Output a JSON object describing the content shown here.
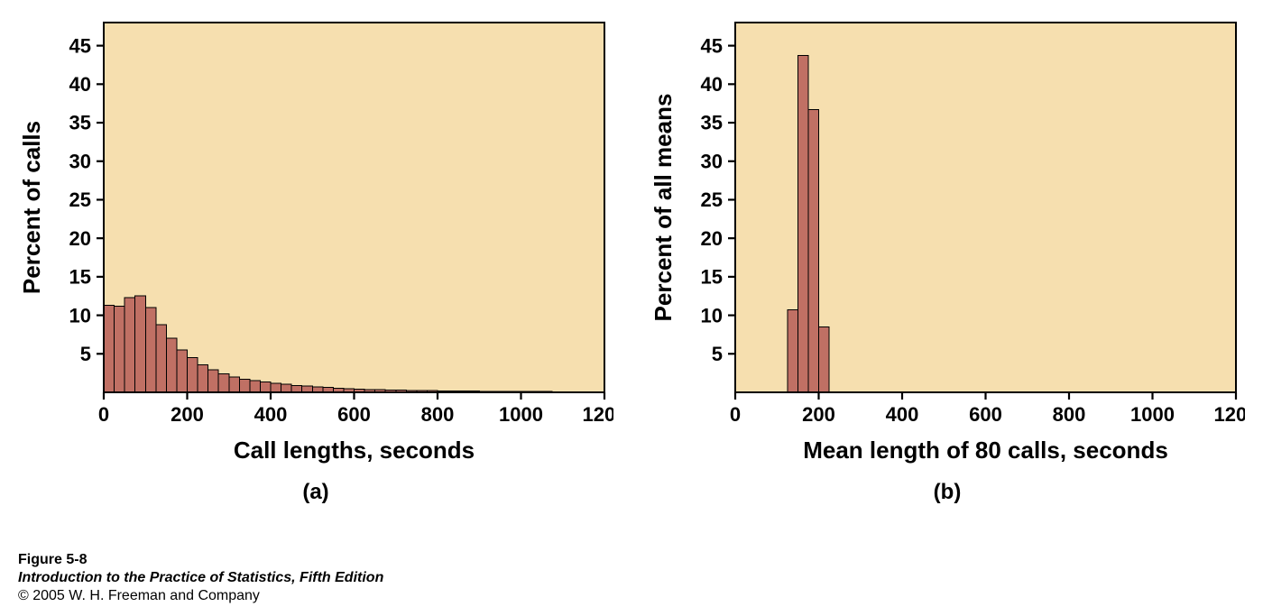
{
  "chart_a": {
    "type": "histogram",
    "plot_bg": "#f6dfaf",
    "border_color": "#000000",
    "border_width": 2.2,
    "bar_fill": "#c07064",
    "bar_stroke": "#000000",
    "bar_stroke_width": 1,
    "xlim": [
      0,
      1200
    ],
    "ylim": [
      0,
      48
    ],
    "xtick_step": 200,
    "ytick_step": 5,
    "x_bin_width": 25,
    "xlabel": "Call lengths, seconds",
    "ylabel": "Percent of calls",
    "label_fontsize": 26,
    "label_fontweight": 700,
    "tick_fontsize": 22,
    "tick_fontweight": 700,
    "sub_label": "(a)",
    "bars": [
      {
        "x": 0,
        "h": 11.3
      },
      {
        "x": 25,
        "h": 11.2
      },
      {
        "x": 50,
        "h": 12.3
      },
      {
        "x": 75,
        "h": 12.5
      },
      {
        "x": 100,
        "h": 11.0
      },
      {
        "x": 125,
        "h": 8.8
      },
      {
        "x": 150,
        "h": 7.0
      },
      {
        "x": 175,
        "h": 5.5
      },
      {
        "x": 200,
        "h": 4.5
      },
      {
        "x": 225,
        "h": 3.6
      },
      {
        "x": 250,
        "h": 2.9
      },
      {
        "x": 275,
        "h": 2.4
      },
      {
        "x": 300,
        "h": 2.0
      },
      {
        "x": 325,
        "h": 1.7
      },
      {
        "x": 350,
        "h": 1.5
      },
      {
        "x": 375,
        "h": 1.35
      },
      {
        "x": 400,
        "h": 1.2
      },
      {
        "x": 425,
        "h": 1.05
      },
      {
        "x": 450,
        "h": 0.9
      },
      {
        "x": 475,
        "h": 0.8
      },
      {
        "x": 500,
        "h": 0.7
      },
      {
        "x": 525,
        "h": 0.62
      },
      {
        "x": 550,
        "h": 0.55
      },
      {
        "x": 575,
        "h": 0.48
      },
      {
        "x": 600,
        "h": 0.42
      },
      {
        "x": 625,
        "h": 0.38
      },
      {
        "x": 650,
        "h": 0.34
      },
      {
        "x": 675,
        "h": 0.3
      },
      {
        "x": 700,
        "h": 0.28
      },
      {
        "x": 725,
        "h": 0.25
      },
      {
        "x": 750,
        "h": 0.23
      },
      {
        "x": 775,
        "h": 0.21
      },
      {
        "x": 800,
        "h": 0.19
      },
      {
        "x": 825,
        "h": 0.18
      },
      {
        "x": 850,
        "h": 0.16
      },
      {
        "x": 875,
        "h": 0.15
      },
      {
        "x": 900,
        "h": 0.14
      },
      {
        "x": 925,
        "h": 0.13
      },
      {
        "x": 950,
        "h": 0.12
      },
      {
        "x": 975,
        "h": 0.11
      },
      {
        "x": 1000,
        "h": 0.1
      },
      {
        "x": 1025,
        "h": 0.1
      },
      {
        "x": 1050,
        "h": 0.09
      },
      {
        "x": 1075,
        "h": 0.08
      },
      {
        "x": 1100,
        "h": 0.08
      },
      {
        "x": 1125,
        "h": 0.07
      },
      {
        "x": 1150,
        "h": 0.07
      },
      {
        "x": 1175,
        "h": 0.06
      }
    ]
  },
  "chart_b": {
    "type": "histogram",
    "plot_bg": "#f6dfaf",
    "border_color": "#000000",
    "border_width": 2.2,
    "bar_fill": "#c07064",
    "bar_stroke": "#000000",
    "bar_stroke_width": 1,
    "xlim": [
      0,
      1200
    ],
    "ylim": [
      0,
      48
    ],
    "xtick_step": 200,
    "ytick_step": 5,
    "x_bin_width": 25,
    "xlabel": "Mean length of 80 calls, seconds",
    "ylabel": "Percent of all means",
    "label_fontsize": 26,
    "label_fontweight": 700,
    "tick_fontsize": 22,
    "tick_fontweight": 700,
    "sub_label": "(b)",
    "bars": [
      {
        "x": 125,
        "h": 10.7
      },
      {
        "x": 150,
        "h": 43.7
      },
      {
        "x": 175,
        "h": 36.7
      },
      {
        "x": 200,
        "h": 8.5
      }
    ]
  },
  "caption": {
    "line1": "Figure 5-8",
    "line2": "Introduction to the Practice of Statistics, Fifth Edition",
    "line3": "© 2005 W. H. Freeman and Company"
  }
}
